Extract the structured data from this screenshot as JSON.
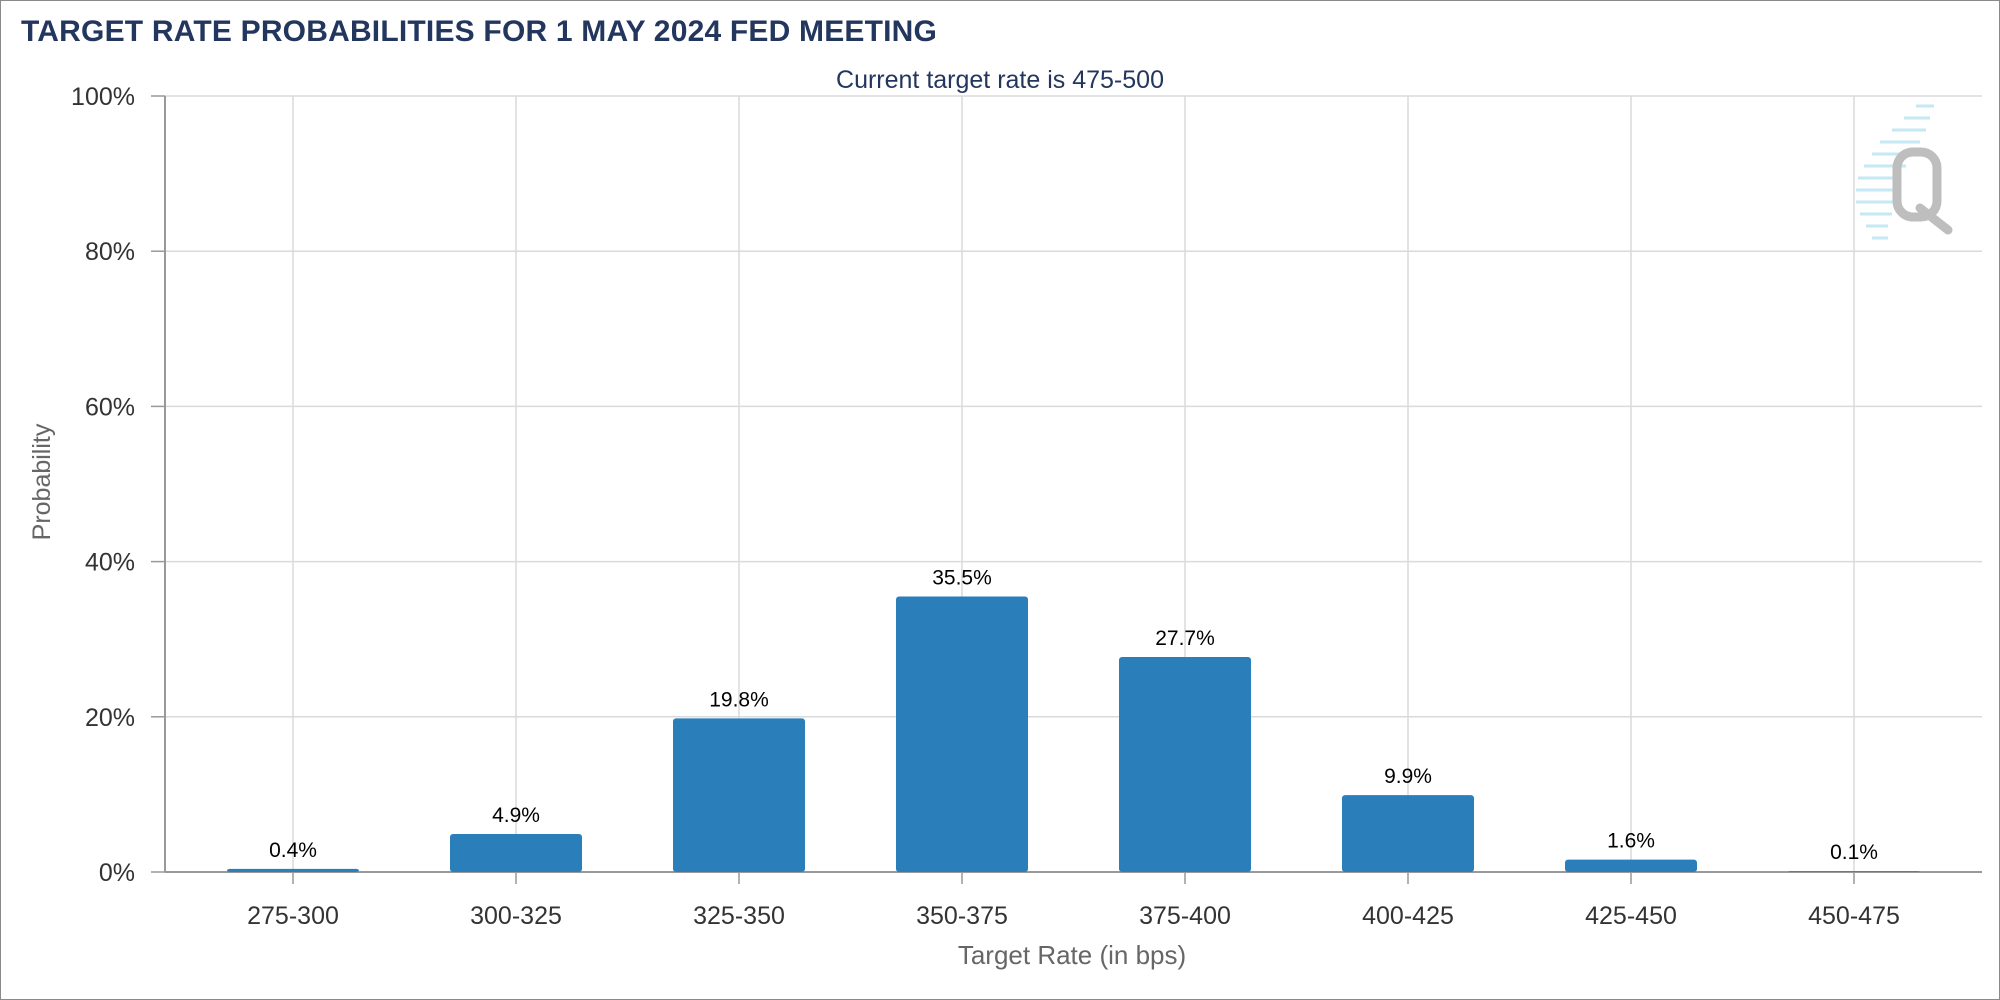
{
  "title": "TARGET RATE PROBABILITIES FOR 1 MAY 2024 FED MEETING",
  "chart_data": {
    "type": "bar",
    "subtitle": "Current target rate is 475-500",
    "categories": [
      "275-300",
      "300-325",
      "325-350",
      "350-375",
      "375-400",
      "400-425",
      "425-450",
      "450-475"
    ],
    "values": [
      0.4,
      4.9,
      19.8,
      35.5,
      27.7,
      9.9,
      1.6,
      0.1
    ],
    "data_labels": [
      "0.4%",
      "4.9%",
      "19.8%",
      "35.5%",
      "27.7%",
      "9.9%",
      "1.6%",
      "0.1%"
    ],
    "xlabel": "Target Rate (in bps)",
    "ylabel": "Probability",
    "ylim": [
      0,
      100
    ],
    "yticks": [
      0,
      20,
      40,
      60,
      80,
      100
    ],
    "ytick_labels": [
      "0%",
      "20%",
      "40%",
      "60%",
      "80%",
      "100%"
    ],
    "grid": true,
    "colors": {
      "bar": "#2a7fba",
      "title": "#23365e",
      "grid": "#dadada",
      "axis": "#999999",
      "tick_text": "#333333",
      "axis_title": "#666666"
    },
    "watermark_icon": "quikstrike-q-logo-icon"
  }
}
